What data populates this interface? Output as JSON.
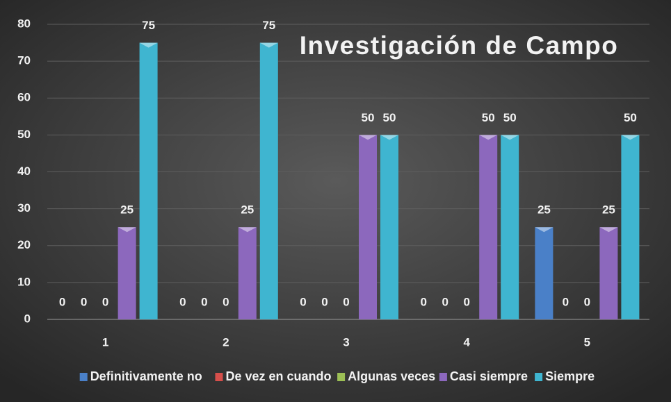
{
  "chart_data": {
    "type": "bar",
    "title": "Investigación de Campo",
    "categories": [
      "1",
      "2",
      "3",
      "4",
      "5"
    ],
    "series": [
      {
        "name": "Definitivamente no",
        "color": "#4a80c8",
        "values": [
          0,
          0,
          0,
          0,
          25
        ]
      },
      {
        "name": "De vez en cuando",
        "color": "#d64f4b",
        "values": [
          0,
          0,
          0,
          0,
          0
        ]
      },
      {
        "name": "Algunas veces",
        "color": "#9cbf55",
        "values": [
          0,
          0,
          0,
          0,
          0
        ]
      },
      {
        "name": "Casi siempre",
        "color": "#8c68bd",
        "values": [
          25,
          25,
          50,
          50,
          25
        ]
      },
      {
        "name": "Siempre",
        "color": "#3fb5d0",
        "values": [
          75,
          75,
          50,
          50,
          50
        ]
      }
    ],
    "ylim": [
      0,
      80
    ],
    "yticks": [
      0,
      10,
      20,
      30,
      40,
      50,
      60,
      70,
      80
    ],
    "grid": true,
    "legend": "bottom"
  }
}
